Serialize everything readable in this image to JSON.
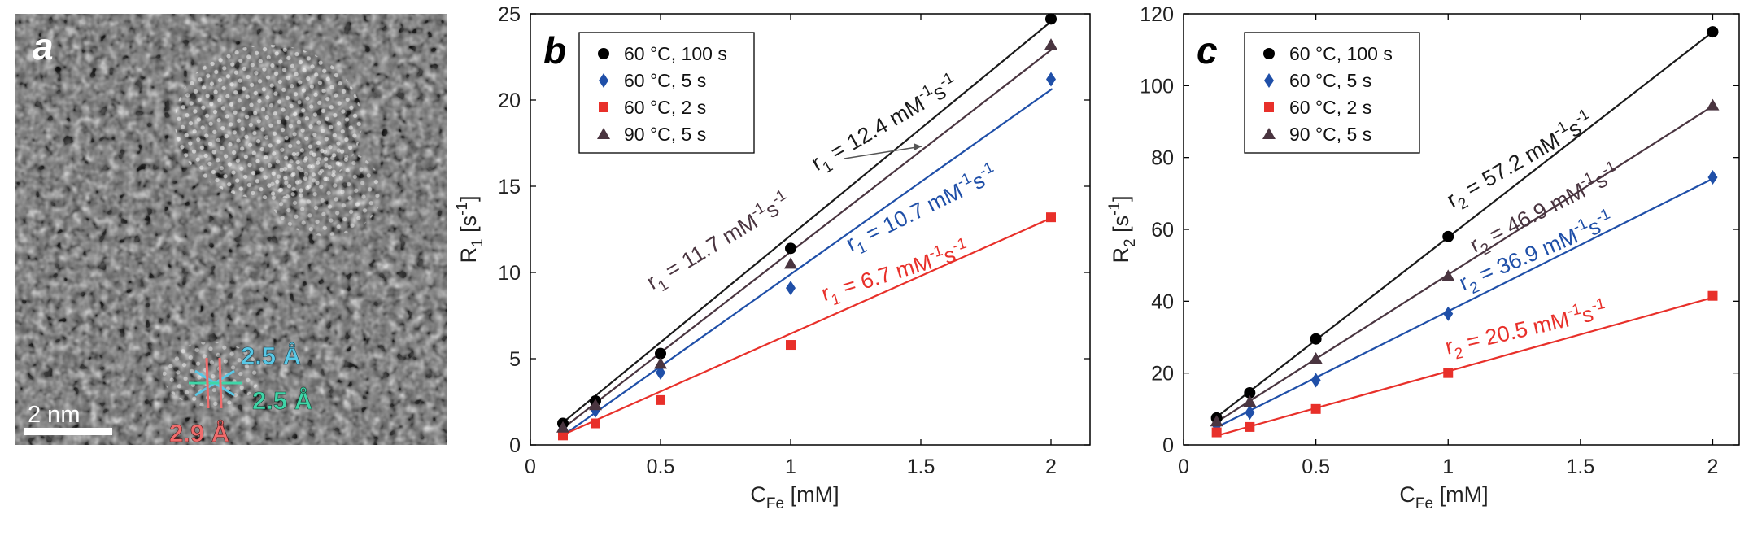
{
  "panel_a": {
    "label": "a",
    "scale_bar": "2 nm",
    "spacings": [
      "2.5 Å",
      "2.5 Å",
      "2.9 Å"
    ],
    "colors": {
      "spacing_1": "#58c8e6",
      "spacing_2": "#3fd6a8",
      "spacing_3": "#f06c6c"
    }
  },
  "chart_data": [
    {
      "type": "scatter",
      "panel_label": "b",
      "title": "",
      "xlabel": "C",
      "xlabel_sub": "Fe",
      "xlabel_unit": " [mM]",
      "ylabel": "R",
      "ylabel_sub": "1",
      "ylabel_unit_base": " [s",
      "ylabel_unit_exp": "-1",
      "ylabel_unit_close": "]",
      "xlim": [
        0,
        2.15
      ],
      "ylim": [
        0,
        25
      ],
      "xticks": [
        0,
        0.5,
        1,
        1.5,
        2
      ],
      "xtick_labels": [
        "0",
        "0.5",
        "1",
        "1.5",
        "2"
      ],
      "yticks": [
        0,
        5,
        10,
        15,
        20,
        25
      ],
      "ytick_labels": [
        "0",
        "5",
        "10",
        "15",
        "20",
        "25"
      ],
      "x": [
        0.125,
        0.25,
        0.5,
        1,
        2
      ],
      "series": [
        {
          "name": "60 °C, 100 s",
          "marker": "circle",
          "color": "#000000",
          "line_color": "#1a1a1a",
          "values": [
            1.25,
            2.55,
            5.3,
            11.4,
            24.7
          ],
          "fit": {
            "slope": 12.4,
            "intercept": -0.25
          }
        },
        {
          "name": "60 °C, 5 s",
          "marker": "diamond",
          "color": "#1f4fa8",
          "line_color": "#1f4fa8",
          "values": [
            0.9,
            2.0,
            4.2,
            9.1,
            21.2
          ],
          "fit": {
            "slope": 10.7,
            "intercept": -0.8
          }
        },
        {
          "name": "60 °C, 2 s",
          "marker": "square",
          "color": "#e8302a",
          "line_color": "#e8302a",
          "values": [
            0.55,
            1.25,
            2.6,
            5.8,
            13.2
          ],
          "fit": {
            "slope": 6.7,
            "intercept": -0.25
          }
        },
        {
          "name": "90 °C, 5 s",
          "marker": "triangle",
          "color": "#4a3540",
          "line_color": "#4a3540",
          "values": [
            1.0,
            2.3,
            4.7,
            10.5,
            23.2
          ],
          "fit": {
            "slope": 11.7,
            "intercept": -0.5
          }
        }
      ],
      "annotations": [
        {
          "base": "r",
          "sub": "1",
          "text": " = 12.4 mM",
          "exp": "-1",
          "post": "s",
          "exp2": "-1",
          "series": 0
        },
        {
          "base": "r",
          "sub": "1",
          "text": " = 11.7 mM",
          "exp": "-1",
          "post": "s",
          "exp2": "-1",
          "series": 3
        },
        {
          "base": "r",
          "sub": "1",
          "text": " = 10.7 mM",
          "exp": "-1",
          "post": "s",
          "exp2": "-1",
          "series": 1
        },
        {
          "base": "r",
          "sub": "1",
          "text": " = 6.7 mM",
          "exp": "-1",
          "post": "s",
          "exp2": "-1",
          "series": 2
        }
      ],
      "legend_position": "top-left"
    },
    {
      "type": "scatter",
      "panel_label": "c",
      "title": "",
      "xlabel": "C",
      "xlabel_sub": "Fe",
      "xlabel_unit": " [mM]",
      "ylabel": "R",
      "ylabel_sub": "2",
      "ylabel_unit_base": " [s",
      "ylabel_unit_exp": "-1",
      "ylabel_unit_close": "]",
      "xlim": [
        0,
        2.1
      ],
      "ylim": [
        0,
        120
      ],
      "xticks": [
        0,
        0.5,
        1,
        1.5,
        2
      ],
      "xtick_labels": [
        "0",
        "0.5",
        "1",
        "1.5",
        "2"
      ],
      "yticks": [
        0,
        20,
        40,
        60,
        80,
        100,
        120
      ],
      "ytick_labels": [
        "0",
        "20",
        "40",
        "60",
        "80",
        "100",
        "120"
      ],
      "x": [
        0.125,
        0.25,
        0.5,
        1,
        2
      ],
      "series": [
        {
          "name": "60 °C, 100 s",
          "marker": "circle",
          "color": "#000000",
          "line_color": "#1a1a1a",
          "values": [
            7.5,
            14.5,
            29.5,
            58,
            115
          ],
          "fit": {
            "slope": 57.2,
            "intercept": 0.6
          }
        },
        {
          "name": "60 °C, 5 s",
          "marker": "diamond",
          "color": "#1f4fa8",
          "line_color": "#1f4fa8",
          "values": [
            5.5,
            9.0,
            18.0,
            36.5,
            74.5
          ],
          "fit": {
            "slope": 36.9,
            "intercept": 0.3
          }
        },
        {
          "name": "60 °C, 2 s",
          "marker": "square",
          "color": "#e8302a",
          "line_color": "#e8302a",
          "values": [
            3.5,
            5.0,
            10.0,
            20.0,
            41.5
          ],
          "fit": {
            "slope": 20.5,
            "intercept": 0.0
          }
        },
        {
          "name": "90 °C, 5 s",
          "marker": "triangle",
          "color": "#4a3540",
          "line_color": "#4a3540",
          "values": [
            6.5,
            12.0,
            24.0,
            47.0,
            94.5
          ],
          "fit": {
            "slope": 46.9,
            "intercept": 0.5
          }
        }
      ],
      "annotations": [
        {
          "base": "r",
          "sub": "2",
          "text": " = 57.2 mM",
          "exp": "-1",
          "post": "s",
          "exp2": "-1",
          "series": 0
        },
        {
          "base": "r",
          "sub": "2",
          "text": " = 46.9 mM",
          "exp": "-1",
          "post": "s",
          "exp2": "-1",
          "series": 3
        },
        {
          "base": "r",
          "sub": "2",
          "text": " = 36.9 mM",
          "exp": "-1",
          "post": "s",
          "exp2": "-1",
          "series": 1
        },
        {
          "base": "r",
          "sub": "2",
          "text": " = 20.5 mM",
          "exp": "-1",
          "post": "s",
          "exp2": "-1",
          "series": 2
        }
      ],
      "legend_position": "top-left"
    }
  ]
}
